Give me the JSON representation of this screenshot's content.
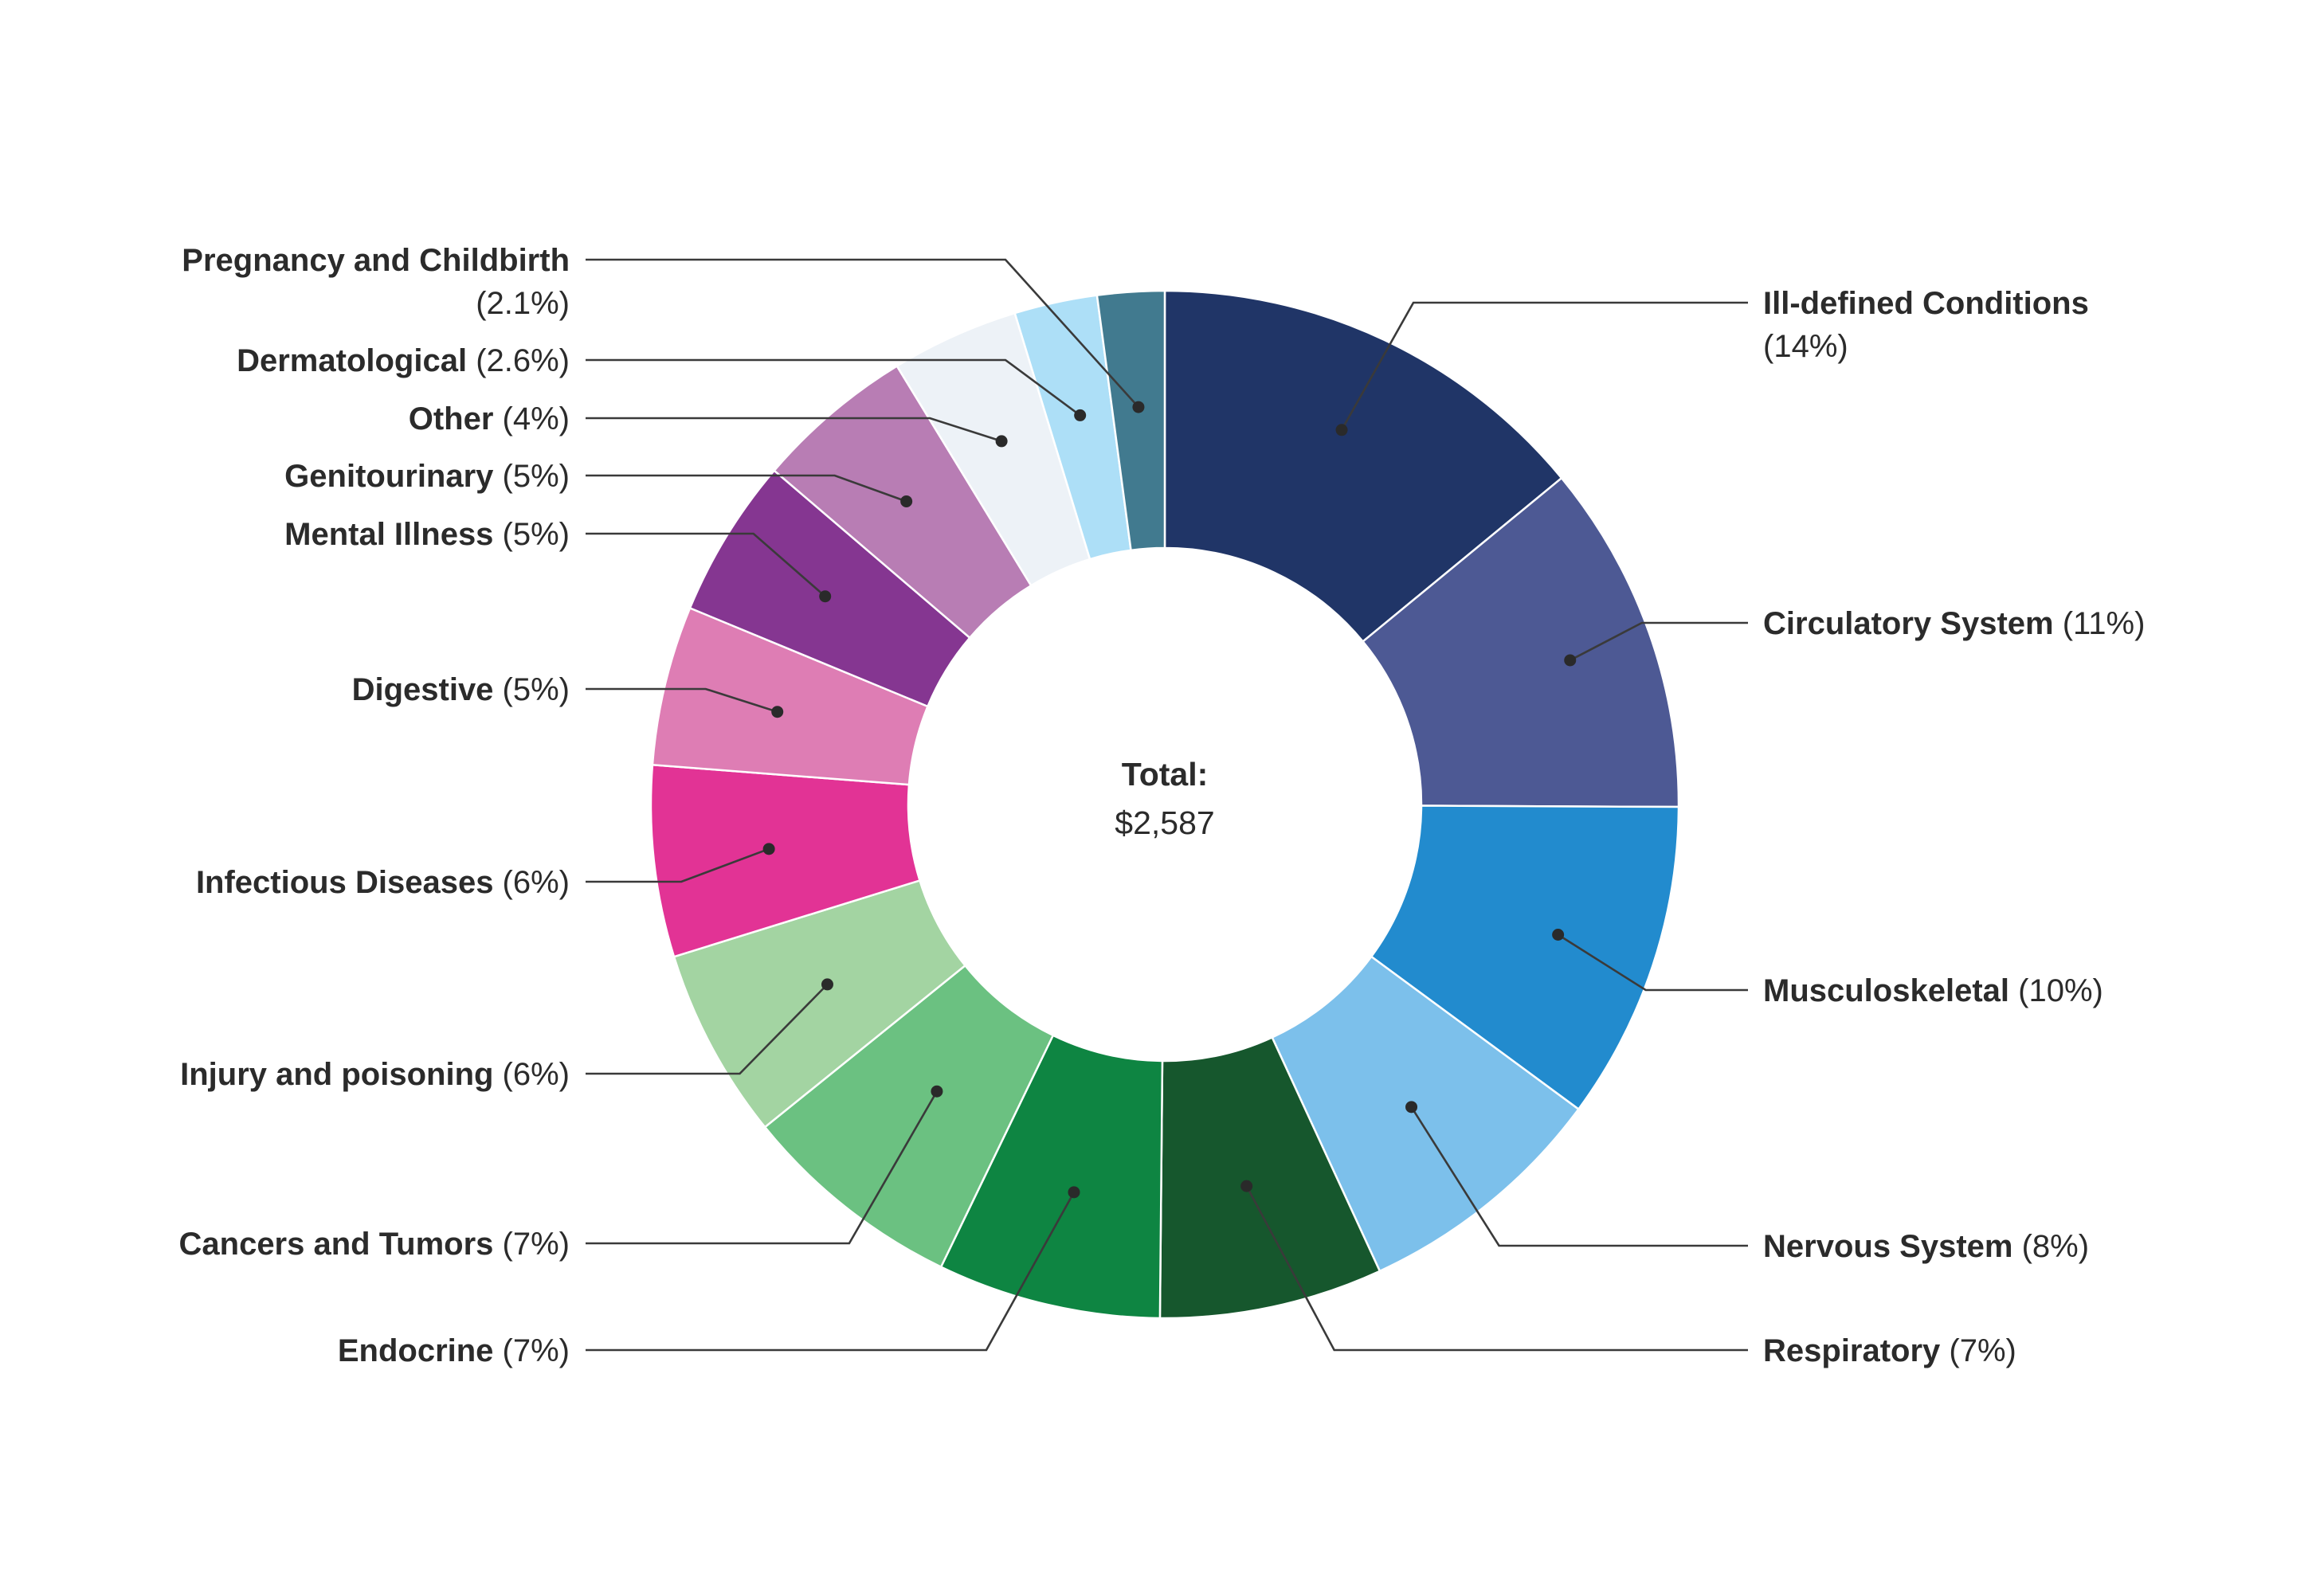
{
  "chart_data": {
    "type": "pie",
    "variant": "donut",
    "center_label": {
      "title": "Total:",
      "value": "$2,587"
    },
    "legend": "none",
    "slices": [
      {
        "name": "Ill-defined Conditions",
        "pct_label": "(14%)",
        "value": 14,
        "color": "#203567"
      },
      {
        "name": "Circulatory System",
        "pct_label": "(11%)",
        "value": 11,
        "color": "#4d5994"
      },
      {
        "name": "Musculoskeletal",
        "pct_label": "(10%)",
        "value": 10,
        "color": "#228bce"
      },
      {
        "name": "Nervous System",
        "pct_label": "(8%)",
        "value": 8,
        "color": "#7cc0eb"
      },
      {
        "name": "Respiratory",
        "pct_label": "(7%)",
        "value": 7,
        "color": "#16572d"
      },
      {
        "name": "Endocrine",
        "pct_label": "(7%)",
        "value": 7,
        "color": "#0e8542"
      },
      {
        "name": "Cancers and Tumors",
        "pct_label": "(7%)",
        "value": 7,
        "color": "#6bc181"
      },
      {
        "name": "Injury and poisoning",
        "pct_label": "(6%)",
        "value": 6,
        "color": "#a3d4a2"
      },
      {
        "name": "Infectious Diseases",
        "pct_label": "(6%)",
        "value": 6,
        "color": "#e23395"
      },
      {
        "name": "Digestive",
        "pct_label": "(5%)",
        "value": 5,
        "color": "#de7db4"
      },
      {
        "name": "Mental Illness",
        "pct_label": "(5%)",
        "value": 5,
        "color": "#853691"
      },
      {
        "name": "Genitourinary",
        "pct_label": "(5%)",
        "value": 5,
        "color": "#b87db4"
      },
      {
        "name": "Other",
        "pct_label": "(4%)",
        "value": 4,
        "color": "#edf2f7"
      },
      {
        "name": "Dermatological",
        "pct_label": "(2.6%)",
        "value": 2.6,
        "color": "#addff7"
      },
      {
        "name": "Pregnancy and Childbirth",
        "pct_label": "(2.1%)",
        "value": 2.1,
        "color": "#417a8f"
      }
    ]
  }
}
